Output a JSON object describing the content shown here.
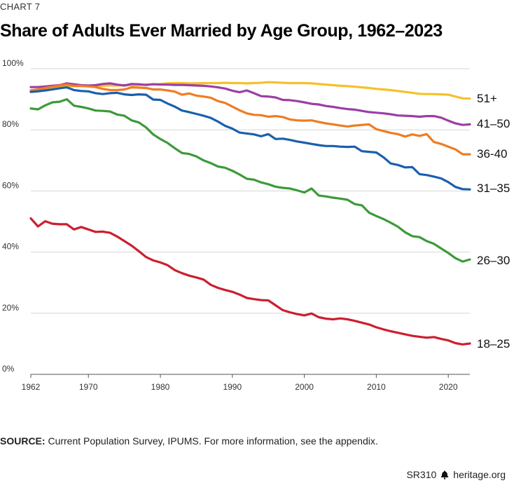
{
  "header": {
    "kicker": "CHART 7",
    "title": "Share of Adults Ever Married by Age Group, 1962–2023"
  },
  "source": {
    "label": "SOURCE:",
    "text": "Current Population Survey, IPUMS. For more information, see the appendix."
  },
  "footer": {
    "report_id": "SR310",
    "site": "heritage.org"
  },
  "chart_data": {
    "type": "line",
    "title": "Share of Adults Ever Married by Age Group, 1962–2023",
    "xlabel": "",
    "ylabel": "",
    "xlim": [
      1962,
      2023
    ],
    "ylim": [
      0,
      100
    ],
    "x_ticks": [
      1962,
      1970,
      1980,
      1990,
      2000,
      2010,
      2020
    ],
    "y_ticks": [
      0,
      20,
      40,
      60,
      80,
      100
    ],
    "y_tick_labels": [
      "0%",
      "20%",
      "40%",
      "60%",
      "80%",
      "100%"
    ],
    "grid": "horizontal",
    "x": [
      1962,
      1963,
      1964,
      1965,
      1966,
      1967,
      1968,
      1969,
      1970,
      1971,
      1972,
      1973,
      1974,
      1975,
      1976,
      1977,
      1978,
      1979,
      1980,
      1981,
      1982,
      1983,
      1984,
      1985,
      1986,
      1987,
      1988,
      1989,
      1990,
      1991,
      1992,
      1993,
      1994,
      1995,
      1996,
      1997,
      1998,
      1999,
      2000,
      2001,
      2002,
      2003,
      2004,
      2005,
      2006,
      2007,
      2008,
      2009,
      2010,
      2011,
      2012,
      2013,
      2014,
      2015,
      2016,
      2017,
      2018,
      2019,
      2020,
      2021,
      2022,
      2023
    ],
    "series": [
      {
        "name": "51+",
        "color": "#f5c12b",
        "values": [
          93.0,
          93.2,
          93.4,
          93.7,
          94.0,
          94.2,
          94.3,
          94.3,
          94.3,
          94.3,
          94.4,
          94.5,
          94.5,
          94.6,
          94.6,
          94.7,
          94.8,
          94.9,
          95.0,
          95.2,
          95.3,
          95.3,
          95.2,
          95.2,
          95.3,
          95.3,
          95.3,
          95.4,
          95.3,
          95.3,
          95.2,
          95.3,
          95.4,
          95.6,
          95.5,
          95.4,
          95.3,
          95.3,
          95.3,
          95.2,
          95.0,
          94.8,
          94.6,
          94.4,
          94.3,
          94.1,
          93.9,
          93.7,
          93.4,
          93.2,
          93.0,
          92.7,
          92.4,
          92.1,
          91.8,
          91.7,
          91.7,
          91.6,
          91.5,
          90.9,
          90.3,
          90.2
        ]
      },
      {
        "name": "41–50",
        "color": "#9b3fa6",
        "values": [
          94.0,
          94.0,
          94.2,
          94.4,
          94.6,
          95.2,
          94.9,
          94.6,
          94.5,
          94.6,
          95.0,
          95.2,
          94.8,
          94.5,
          95.0,
          94.9,
          94.7,
          94.9,
          94.8,
          94.8,
          94.7,
          94.7,
          94.6,
          94.5,
          94.4,
          94.2,
          93.9,
          93.5,
          92.8,
          92.3,
          92.9,
          92.0,
          91.0,
          90.9,
          90.6,
          89.8,
          89.7,
          89.4,
          89.0,
          88.5,
          88.3,
          87.8,
          87.5,
          87.1,
          86.8,
          86.6,
          86.2,
          85.8,
          85.6,
          85.4,
          85.1,
          84.7,
          84.6,
          84.5,
          84.3,
          84.5,
          84.5,
          84.0,
          83.0,
          82.1,
          81.6,
          81.8
        ]
      },
      {
        "name": "36-40",
        "color": "#ef7c22",
        "values": [
          92.8,
          93.2,
          93.7,
          94.1,
          94.5,
          94.8,
          94.4,
          94.4,
          94.2,
          94.0,
          93.4,
          93.0,
          93.0,
          93.2,
          93.9,
          93.8,
          93.7,
          93.2,
          93.2,
          92.9,
          92.5,
          91.5,
          91.9,
          91.2,
          90.9,
          90.5,
          89.4,
          88.8,
          87.6,
          86.4,
          85.4,
          84.9,
          84.8,
          84.3,
          84.5,
          84.2,
          83.4,
          83.1,
          83.0,
          83.1,
          82.6,
          82.1,
          81.8,
          81.4,
          81.1,
          81.4,
          81.6,
          81.8,
          80.2,
          79.6,
          79.0,
          78.6,
          77.8,
          78.5,
          78.0,
          78.6,
          76.0,
          75.4,
          74.5,
          73.6,
          72.0,
          72.0
        ]
      },
      {
        "name": "31–35",
        "color": "#1a5fae",
        "values": [
          92.4,
          92.6,
          92.9,
          93.2,
          93.6,
          93.9,
          93.0,
          92.7,
          92.6,
          92.0,
          91.7,
          92.0,
          92.1,
          91.6,
          91.4,
          91.6,
          91.5,
          89.9,
          89.8,
          88.6,
          87.6,
          86.3,
          85.8,
          85.2,
          84.6,
          83.9,
          82.7,
          81.3,
          80.4,
          79.1,
          78.8,
          78.5,
          77.9,
          78.6,
          77.0,
          77.1,
          76.7,
          76.2,
          75.8,
          75.4,
          75.0,
          74.7,
          74.7,
          74.5,
          74.4,
          74.5,
          73.0,
          72.8,
          72.6,
          71.0,
          69.0,
          68.5,
          67.7,
          67.8,
          65.5,
          65.2,
          64.7,
          64.1,
          62.9,
          61.3,
          60.6,
          60.5
        ]
      },
      {
        "name": "26–30",
        "color": "#3d9a39",
        "values": [
          87.0,
          86.7,
          88.0,
          89.0,
          89.2,
          90.0,
          87.9,
          87.5,
          87.0,
          86.3,
          86.2,
          86.0,
          85.0,
          84.6,
          83.1,
          82.4,
          80.8,
          78.5,
          77.0,
          75.7,
          74.0,
          72.4,
          72.1,
          71.3,
          70.0,
          69.1,
          68.0,
          67.6,
          66.6,
          65.4,
          64.0,
          63.7,
          62.8,
          62.2,
          61.4,
          61.0,
          60.8,
          60.2,
          59.5,
          60.8,
          58.5,
          58.2,
          57.8,
          57.5,
          57.1,
          55.7,
          55.3,
          52.9,
          51.8,
          50.8,
          49.6,
          48.3,
          46.5,
          45.2,
          44.9,
          43.6,
          42.7,
          41.2,
          39.7,
          38.0,
          36.9,
          37.6
        ]
      },
      {
        "name": "18–25",
        "color": "#cc1f2e",
        "values": [
          51.0,
          48.4,
          50.1,
          49.3,
          49.1,
          49.1,
          47.4,
          48.2,
          47.4,
          46.6,
          46.7,
          46.3,
          45.1,
          43.6,
          42.1,
          40.3,
          38.4,
          37.3,
          36.6,
          35.7,
          34.1,
          33.1,
          32.3,
          31.7,
          31.0,
          29.3,
          28.3,
          27.6,
          27.0,
          26.1,
          25.0,
          24.6,
          24.3,
          24.2,
          22.6,
          21.0,
          20.3,
          19.7,
          19.3,
          19.9,
          18.7,
          18.2,
          18.0,
          18.3,
          18.0,
          17.5,
          16.9,
          16.3,
          15.4,
          14.7,
          14.1,
          13.6,
          13.1,
          12.6,
          12.3,
          12.0,
          12.2,
          11.6,
          11.1,
          10.2,
          9.8,
          10.1
        ]
      }
    ]
  }
}
